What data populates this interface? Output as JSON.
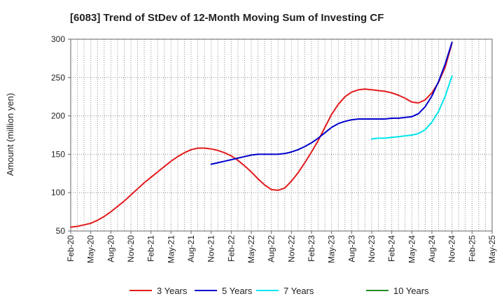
{
  "chart_data": {
    "type": "line",
    "title": "[6083]  Trend of StDev of 12-Month Moving Sum of Investing CF",
    "ylabel": "Amount (million yen)",
    "xlabel": "",
    "ylim": [
      50,
      300
    ],
    "yticks": [
      50,
      100,
      150,
      200,
      250,
      300
    ],
    "x_start": "2020-02",
    "x_end": "2025-05",
    "xtick_labels": [
      "Feb-20",
      "May-20",
      "Aug-20",
      "Nov-20",
      "Feb-21",
      "May-21",
      "Aug-21",
      "Nov-21",
      "Feb-22",
      "May-22",
      "Aug-22",
      "Nov-22",
      "Feb-23",
      "May-23",
      "Aug-23",
      "Nov-23",
      "Feb-24",
      "May-24",
      "Aug-24",
      "Nov-24",
      "Feb-25",
      "May-25"
    ],
    "grid": true,
    "legend_position": "bottom",
    "series": [
      {
        "name": "3 Years",
        "color": "#e31a1c",
        "points": [
          [
            "2020-02",
            55
          ],
          [
            "2020-03",
            56
          ],
          [
            "2020-04",
            58
          ],
          [
            "2020-05",
            60
          ],
          [
            "2020-06",
            64
          ],
          [
            "2020-07",
            69
          ],
          [
            "2020-08",
            75
          ],
          [
            "2020-09",
            82
          ],
          [
            "2020-10",
            89
          ],
          [
            "2020-11",
            97
          ],
          [
            "2020-12",
            105
          ],
          [
            "2021-01",
            113
          ],
          [
            "2021-02",
            120
          ],
          [
            "2021-03",
            127
          ],
          [
            "2021-04",
            134
          ],
          [
            "2021-05",
            141
          ],
          [
            "2021-06",
            147
          ],
          [
            "2021-07",
            152
          ],
          [
            "2021-08",
            156
          ],
          [
            "2021-09",
            158
          ],
          [
            "2021-10",
            158
          ],
          [
            "2021-11",
            157
          ],
          [
            "2021-12",
            155
          ],
          [
            "2022-01",
            152
          ],
          [
            "2022-02",
            148
          ],
          [
            "2022-03",
            142
          ],
          [
            "2022-04",
            135
          ],
          [
            "2022-05",
            127
          ],
          [
            "2022-06",
            118
          ],
          [
            "2022-07",
            110
          ],
          [
            "2022-08",
            104
          ],
          [
            "2022-09",
            103
          ],
          [
            "2022-10",
            106
          ],
          [
            "2022-11",
            115
          ],
          [
            "2022-12",
            126
          ],
          [
            "2023-01",
            139
          ],
          [
            "2023-02",
            153
          ],
          [
            "2023-03",
            168
          ],
          [
            "2023-04",
            185
          ],
          [
            "2023-05",
            202
          ],
          [
            "2023-06",
            215
          ],
          [
            "2023-07",
            225
          ],
          [
            "2023-08",
            231
          ],
          [
            "2023-09",
            234
          ],
          [
            "2023-10",
            235
          ],
          [
            "2023-11",
            234
          ],
          [
            "2023-12",
            233
          ],
          [
            "2024-01",
            232
          ],
          [
            "2024-02",
            230
          ],
          [
            "2024-03",
            227
          ],
          [
            "2024-04",
            223
          ],
          [
            "2024-05",
            218
          ],
          [
            "2024-06",
            217
          ],
          [
            "2024-07",
            221
          ],
          [
            "2024-08",
            230
          ],
          [
            "2024-09",
            244
          ],
          [
            "2024-10",
            264
          ],
          [
            "2024-11",
            295
          ]
        ]
      },
      {
        "name": "5 Years",
        "color": "#0000cc",
        "points": [
          [
            "2021-11",
            137
          ],
          [
            "2021-12",
            139
          ],
          [
            "2022-01",
            141
          ],
          [
            "2022-02",
            143
          ],
          [
            "2022-03",
            145
          ],
          [
            "2022-04",
            147
          ],
          [
            "2022-05",
            149
          ],
          [
            "2022-06",
            150
          ],
          [
            "2022-07",
            150
          ],
          [
            "2022-08",
            150
          ],
          [
            "2022-09",
            150
          ],
          [
            "2022-10",
            151
          ],
          [
            "2022-11",
            153
          ],
          [
            "2022-12",
            156
          ],
          [
            "2023-01",
            160
          ],
          [
            "2023-02",
            165
          ],
          [
            "2023-03",
            171
          ],
          [
            "2023-04",
            178
          ],
          [
            "2023-05",
            185
          ],
          [
            "2023-06",
            190
          ],
          [
            "2023-07",
            193
          ],
          [
            "2023-08",
            195
          ],
          [
            "2023-09",
            196
          ],
          [
            "2023-10",
            196
          ],
          [
            "2023-11",
            196
          ],
          [
            "2023-12",
            196
          ],
          [
            "2024-01",
            196
          ],
          [
            "2024-02",
            197
          ],
          [
            "2024-03",
            197
          ],
          [
            "2024-04",
            198
          ],
          [
            "2024-05",
            199
          ],
          [
            "2024-06",
            203
          ],
          [
            "2024-07",
            212
          ],
          [
            "2024-08",
            226
          ],
          [
            "2024-09",
            245
          ],
          [
            "2024-10",
            268
          ],
          [
            "2024-11",
            296
          ]
        ]
      },
      {
        "name": "7 Years",
        "color": "#00e5ee",
        "points": [
          [
            "2023-11",
            170
          ],
          [
            "2023-12",
            171
          ],
          [
            "2024-01",
            171
          ],
          [
            "2024-02",
            172
          ],
          [
            "2024-03",
            173
          ],
          [
            "2024-04",
            174
          ],
          [
            "2024-05",
            175
          ],
          [
            "2024-06",
            177
          ],
          [
            "2024-07",
            182
          ],
          [
            "2024-08",
            192
          ],
          [
            "2024-09",
            206
          ],
          [
            "2024-10",
            226
          ],
          [
            "2024-11",
            252
          ]
        ]
      },
      {
        "name": "10 Years",
        "color": "#228b22",
        "points": []
      }
    ]
  }
}
